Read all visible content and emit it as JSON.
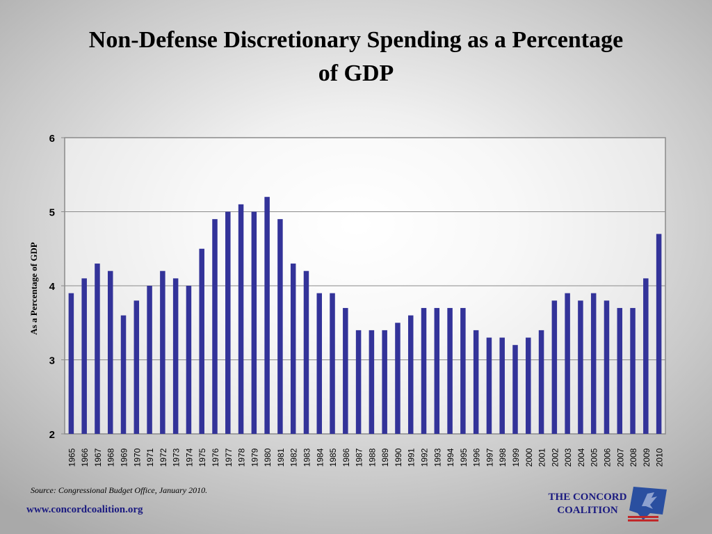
{
  "title": "Non-Defense Discretionary Spending as a Percentage of GDP",
  "source": "Source: Congressional Budget Office, January 2010.",
  "website": "www.concordcoalition.org",
  "logo": {
    "text": "THE CONCORD COALITION",
    "icon": "concord-coalition-emblem",
    "text_color": "#1a1a80",
    "emblem_color": "#2a4fa0",
    "stripe_color": "#c0282a"
  },
  "chart_data": {
    "type": "bar",
    "title": "Non-Defense Discretionary Spending as a Percentage of GDP",
    "xlabel": "",
    "ylabel": "As a Percentage of GDP",
    "ylim": [
      2,
      6
    ],
    "yticks": [
      "2",
      "3",
      "4",
      "5",
      "6"
    ],
    "grid": true,
    "legend": "none",
    "bar_color": "#333399",
    "categories": [
      "1965",
      "1966",
      "1967",
      "1968",
      "1969",
      "1970",
      "1971",
      "1972",
      "1973",
      "1974",
      "1975",
      "1976",
      "1977",
      "1978",
      "1979",
      "1980",
      "1981",
      "1982",
      "1983",
      "1984",
      "1985",
      "1986",
      "1987",
      "1988",
      "1989",
      "1990",
      "1991",
      "1992",
      "1993",
      "1994",
      "1995",
      "1996",
      "1997",
      "1998",
      "1999",
      "2000",
      "2001",
      "2002",
      "2003",
      "2004",
      "2005",
      "2006",
      "2007",
      "2008",
      "2009",
      "2010"
    ],
    "values": [
      3.9,
      4.1,
      4.3,
      4.2,
      3.6,
      3.8,
      4.0,
      4.2,
      4.1,
      4.0,
      4.5,
      4.9,
      5.0,
      5.1,
      5.0,
      5.2,
      4.9,
      4.3,
      4.2,
      3.9,
      3.9,
      3.7,
      3.4,
      3.4,
      3.4,
      3.5,
      3.6,
      3.7,
      3.7,
      3.7,
      3.7,
      3.4,
      3.3,
      3.3,
      3.2,
      3.3,
      3.4,
      3.8,
      3.9,
      3.8,
      3.9,
      3.8,
      3.7,
      3.7,
      4.1,
      4.7
    ]
  }
}
